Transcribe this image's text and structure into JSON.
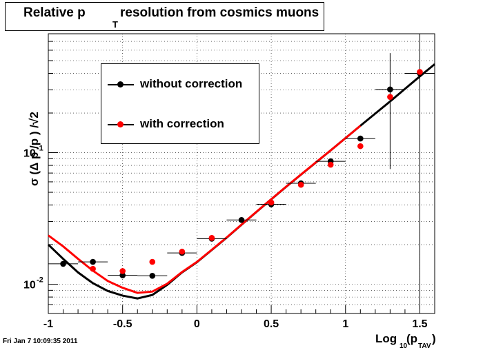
{
  "title": {
    "part1": "Relative p",
    "sub": "T",
    "part2": "resolution from cosmics muons"
  },
  "timestamp": "Fri Jan  7 10:09:35 2011",
  "xaxis": {
    "label": "Log",
    "sub": "10",
    "paren": "(p",
    "sub2": "TAV",
    "close": ")"
  },
  "yaxis": {
    "label": "σ (Δ p /p ) /√2",
    "sub1": "T",
    "sub2": "TAV"
  },
  "legend": {
    "entries": [
      {
        "label": "without correction",
        "color": "#000000"
      },
      {
        "label": "with correction",
        "color": "#ff0000"
      }
    ]
  },
  "chart_data": {
    "type": "scatter",
    "xlim": [
      -1,
      1.6
    ],
    "ylim": [
      0.006,
      0.8
    ],
    "ylog": true,
    "grid": true,
    "legend_position": "top-left",
    "x_ticks": [
      "-1",
      "-0.5",
      "0",
      "0.5",
      "1",
      "1.5"
    ],
    "y_ticks": [
      {
        "base": "10",
        "exp": "-1",
        "value": 0.1
      },
      {
        "base": "10",
        "exp": "-2",
        "value": 0.01
      }
    ],
    "series": [
      {
        "name": "without correction",
        "color": "#000000",
        "points": [
          {
            "x": -0.9,
            "y": 0.0143,
            "xerr": 0.1
          },
          {
            "x": -0.7,
            "y": 0.0148,
            "xerr": 0.1
          },
          {
            "x": -0.5,
            "y": 0.0117,
            "xerr": 0.1
          },
          {
            "x": -0.3,
            "y": 0.0116,
            "xerr": 0.1
          },
          {
            "x": -0.1,
            "y": 0.0173,
            "xerr": 0.1
          },
          {
            "x": 0.1,
            "y": 0.0222,
            "xerr": 0.1
          },
          {
            "x": 0.3,
            "y": 0.0308,
            "xerr": 0.1
          },
          {
            "x": 0.5,
            "y": 0.0405,
            "xerr": 0.1
          },
          {
            "x": 0.7,
            "y": 0.0585,
            "xerr": 0.1
          },
          {
            "x": 0.9,
            "y": 0.086,
            "xerr": 0.1
          },
          {
            "x": 1.1,
            "y": 0.128,
            "xerr": 0.1
          },
          {
            "x": 1.3,
            "y": 0.302,
            "xerr": 0.1,
            "ylo": 0.075,
            "yhi": 0.57
          },
          {
            "x": 1.5,
            "y": 0.4,
            "xerr": 0.1,
            "ylo": 0.0065,
            "yhi": 0.8
          }
        ]
      },
      {
        "name": "with correction",
        "color": "#ff0000",
        "points": [
          {
            "x": -0.7,
            "y": 0.0131
          },
          {
            "x": -0.5,
            "y": 0.0126
          },
          {
            "x": -0.3,
            "y": 0.0148
          },
          {
            "x": -0.1,
            "y": 0.0177
          },
          {
            "x": 0.1,
            "y": 0.0225
          },
          {
            "x": 0.5,
            "y": 0.0418
          },
          {
            "x": 0.7,
            "y": 0.057
          },
          {
            "x": 0.9,
            "y": 0.081
          },
          {
            "x": 1.1,
            "y": 0.112
          },
          {
            "x": 1.3,
            "y": 0.265
          },
          {
            "x": 1.5,
            "y": 0.41
          }
        ]
      }
    ],
    "curves": [
      {
        "name": "fit without correction",
        "color": "#000000",
        "points": [
          [
            -1,
            0.02
          ],
          [
            -0.9,
            0.0156
          ],
          [
            -0.8,
            0.0123
          ],
          [
            -0.7,
            0.0102
          ],
          [
            -0.6,
            0.0089
          ],
          [
            -0.5,
            0.0082
          ],
          [
            -0.4,
            0.0078
          ],
          [
            -0.3,
            0.0083
          ],
          [
            -0.2,
            0.0099
          ],
          [
            -0.1,
            0.0123
          ],
          [
            0,
            0.0147
          ],
          [
            0.1,
            0.0182
          ],
          [
            0.2,
            0.0226
          ],
          [
            0.3,
            0.0283
          ],
          [
            0.4,
            0.0354
          ],
          [
            0.5,
            0.0442
          ],
          [
            0.6,
            0.055
          ],
          [
            0.7,
            0.068
          ],
          [
            0.8,
            0.084
          ],
          [
            0.9,
            0.104
          ],
          [
            1.0,
            0.129
          ],
          [
            1.1,
            0.16
          ],
          [
            1.2,
            0.198
          ],
          [
            1.3,
            0.245
          ],
          [
            1.4,
            0.305
          ],
          [
            1.5,
            0.38
          ],
          [
            1.6,
            0.47
          ]
        ]
      },
      {
        "name": "fit with correction",
        "color": "#ff0000",
        "points": [
          [
            -1,
            0.0235
          ],
          [
            -0.9,
            0.0194
          ],
          [
            -0.8,
            0.0156
          ],
          [
            -0.7,
            0.0127
          ],
          [
            -0.6,
            0.0106
          ],
          [
            -0.5,
            0.0094
          ],
          [
            -0.4,
            0.0086
          ],
          [
            -0.3,
            0.0088
          ],
          [
            -0.2,
            0.0101
          ],
          [
            -0.1,
            0.0124
          ],
          [
            0,
            0.0148
          ],
          [
            0.1,
            0.0183
          ],
          [
            0.2,
            0.0227
          ],
          [
            0.3,
            0.0284
          ],
          [
            0.4,
            0.0355
          ],
          [
            0.5,
            0.0443
          ],
          [
            0.6,
            0.0551
          ],
          [
            0.7,
            0.0682
          ],
          [
            0.8,
            0.0843
          ],
          [
            0.9,
            0.104
          ],
          [
            1.0,
            0.129
          ],
          [
            1.1,
            0.16
          ]
        ]
      }
    ]
  }
}
